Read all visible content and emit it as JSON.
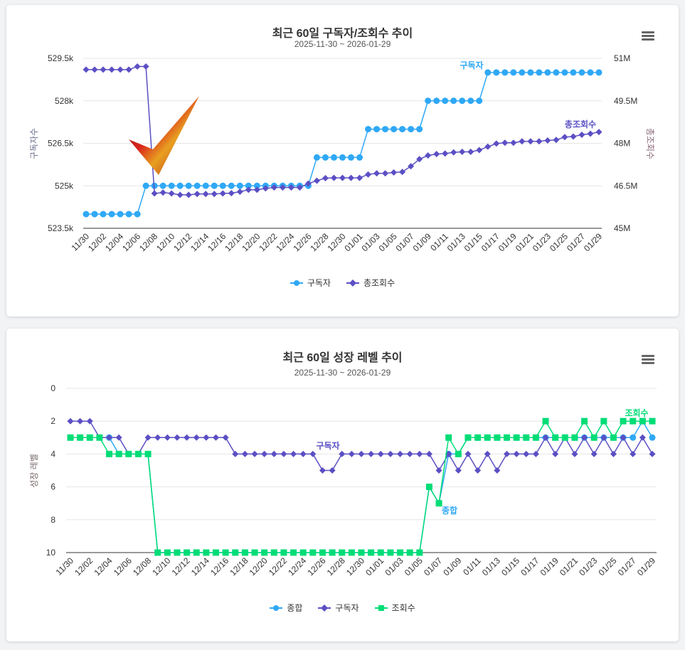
{
  "colors": {
    "subscribers": "#2fa8f5",
    "views": "#5b4fc4",
    "overall": "#2fa8f5",
    "green": "#00dd77"
  },
  "menu_icon": "hamburger-menu-icon",
  "chart_data": [
    {
      "type": "line",
      "title": "최근 60일 구독자/조회수 추이",
      "subtitle": "2025-11-30 ~ 2026-01-29",
      "x_tick_labels": [
        "11/30",
        "12/02",
        "12/04",
        "12/06",
        "12/08",
        "12/10",
        "12/12",
        "12/14",
        "12/16",
        "12/18",
        "12/20",
        "12/22",
        "12/24",
        "12/26",
        "12/28",
        "12/30",
        "01/01",
        "01/03",
        "01/05",
        "01/07",
        "01/09",
        "01/11",
        "01/13",
        "01/15",
        "01/17",
        "01/19",
        "01/21",
        "01/23",
        "01/25",
        "01/27",
        "01/29"
      ],
      "left_axis": {
        "label": "구독자수",
        "range": [
          523500,
          529500
        ],
        "ticks": [
          "529.5k",
          "528k",
          "526.5k",
          "525k",
          "523.5k"
        ]
      },
      "right_axis": {
        "label": "총조회수",
        "range": [
          45000000,
          51000000
        ],
        "ticks": [
          "51M",
          "49.5M",
          "48M",
          "46.5M",
          "45M"
        ]
      },
      "grid": true,
      "legend": "bottom",
      "series": [
        {
          "name": "구독자",
          "axis": "left",
          "marker": "circle",
          "color": "#2fa8f5",
          "values": [
            524000,
            524000,
            524000,
            524000,
            524000,
            524000,
            524000,
            525000,
            525000,
            525000,
            525000,
            525000,
            525000,
            525000,
            525000,
            525000,
            525000,
            525000,
            525000,
            525000,
            525000,
            525000,
            525000,
            525000,
            525000,
            525000,
            525000,
            526000,
            526000,
            526000,
            526000,
            526000,
            526000,
            527000,
            527000,
            527000,
            527000,
            527000,
            527000,
            527000,
            528000,
            528000,
            528000,
            528000,
            528000,
            528000,
            528000,
            529000,
            529000,
            529000,
            529000,
            529000,
            529000,
            529000,
            529000,
            529000,
            529000,
            529000,
            529000,
            529000,
            529000
          ]
        },
        {
          "name": "총조회수",
          "axis": "right",
          "marker": "diamond",
          "color": "#5b4fc4",
          "values": [
            50600000,
            50600000,
            50600000,
            50600000,
            50600000,
            50600000,
            50710000,
            50710000,
            46230000,
            46260000,
            46230000,
            46180000,
            46180000,
            46210000,
            46210000,
            46210000,
            46230000,
            46240000,
            46290000,
            46360000,
            46360000,
            46410000,
            46440000,
            46440000,
            46440000,
            46440000,
            46580000,
            46680000,
            46770000,
            46780000,
            46780000,
            46780000,
            46780000,
            46900000,
            46940000,
            46940000,
            46970000,
            46990000,
            47190000,
            47440000,
            47570000,
            47620000,
            47640000,
            47680000,
            47700000,
            47700000,
            47760000,
            47880000,
            47990000,
            48020000,
            48020000,
            48070000,
            48070000,
            48070000,
            48100000,
            48120000,
            48220000,
            48240000,
            48300000,
            48340000,
            48400000
          ]
        }
      ]
    },
    {
      "type": "line",
      "title": "최근 60일 성장 레벨 추이",
      "subtitle": "2025-11-30 ~ 2026-01-29",
      "x_tick_labels": [
        "11/30",
        "12/02",
        "12/04",
        "12/06",
        "12/08",
        "12/10",
        "12/12",
        "12/14",
        "12/16",
        "12/18",
        "12/20",
        "12/22",
        "12/24",
        "12/26",
        "12/28",
        "12/30",
        "01/01",
        "01/03",
        "01/05",
        "01/07",
        "01/09",
        "01/11",
        "01/13",
        "01/15",
        "01/17",
        "01/19",
        "01/21",
        "01/23",
        "01/25",
        "01/27",
        "01/29"
      ],
      "y_axis": {
        "label": "성장 레벨",
        "range": [
          0,
          10
        ],
        "reversed": true,
        "ticks": [
          "0",
          "2",
          "4",
          "6",
          "8",
          "10"
        ]
      },
      "grid": true,
      "legend": "bottom",
      "series": [
        {
          "name": "종합",
          "marker": "circle",
          "color": "#2fa8f5",
          "values": [
            3,
            3,
            3,
            3,
            3,
            4,
            4,
            4,
            4,
            10,
            10,
            10,
            10,
            10,
            10,
            10,
            10,
            10,
            10,
            10,
            10,
            10,
            10,
            10,
            10,
            10,
            10,
            10,
            10,
            10,
            10,
            10,
            10,
            10,
            10,
            10,
            10,
            6,
            7,
            4,
            4,
            3,
            3,
            3,
            3,
            3,
            3,
            3,
            3,
            3,
            3,
            3,
            3,
            3,
            3,
            3,
            3,
            3,
            3,
            2,
            3
          ]
        },
        {
          "name": "구독자",
          "marker": "diamond",
          "color": "#5b4fc4",
          "values": [
            2,
            2,
            2,
            3,
            3,
            3,
            4,
            4,
            3,
            3,
            3,
            3,
            3,
            3,
            3,
            3,
            3,
            4,
            4,
            4,
            4,
            4,
            4,
            4,
            4,
            4,
            5,
            5,
            4,
            4,
            4,
            4,
            4,
            4,
            4,
            4,
            4,
            4,
            5,
            4,
            5,
            4,
            5,
            4,
            5,
            4,
            4,
            4,
            4,
            3,
            4,
            3,
            4,
            3,
            4,
            3,
            4,
            3,
            4,
            3,
            4
          ]
        },
        {
          "name": "조회수",
          "marker": "square",
          "color": "#00dd77",
          "values": [
            3,
            3,
            3,
            3,
            4,
            4,
            4,
            4,
            4,
            10,
            10,
            10,
            10,
            10,
            10,
            10,
            10,
            10,
            10,
            10,
            10,
            10,
            10,
            10,
            10,
            10,
            10,
            10,
            10,
            10,
            10,
            10,
            10,
            10,
            10,
            10,
            10,
            6,
            7,
            3,
            4,
            3,
            3,
            3,
            3,
            3,
            3,
            3,
            3,
            2,
            3,
            3,
            3,
            2,
            3,
            2,
            3,
            2,
            2,
            2,
            2
          ]
        }
      ]
    }
  ]
}
